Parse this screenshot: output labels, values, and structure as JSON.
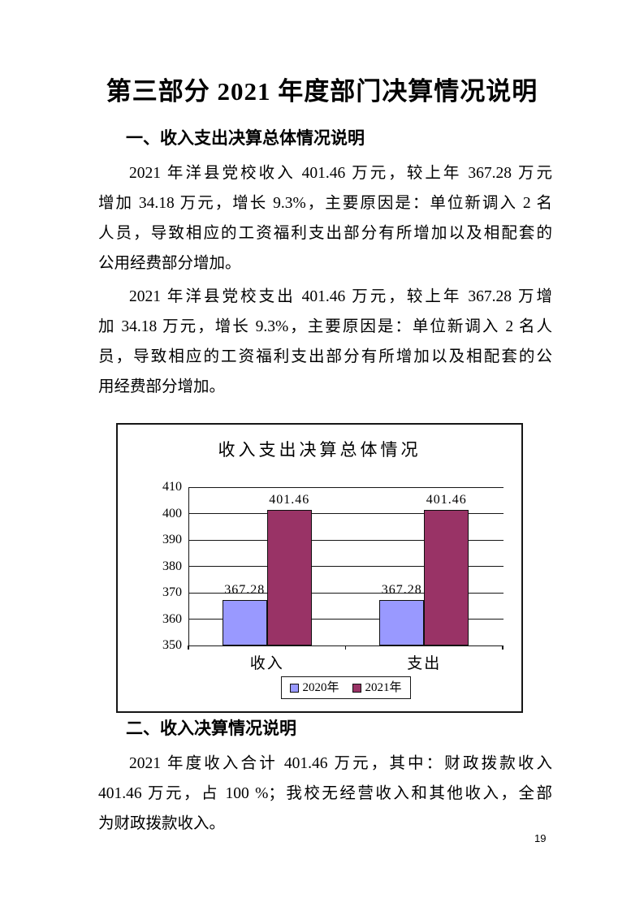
{
  "doc_title": "第三部分 2021 年度部门决算情况说明",
  "page_number": "19",
  "sections": [
    {
      "heading": "一、收入支出决算总体情况说明",
      "paragraphs": [
        {
          "lines": [
            "2021 年洋县党校收入 401.46 万元，较上年 367.28 万元",
            "增加 34.18 万元，增长 9.3%，主要原因是：单位新调入 2 名",
            "人员，导致相应的工资福利支出部分有所增加以及相配套的",
            "公用经费部分增加。"
          ]
        },
        {
          "lines": [
            "2021 年洋县党校支出 401.46 万元，较上年 367.28 万增",
            "加 34.18 万元，增长 9.3%，主要原因是：单位新调入 2 名人",
            "员，导致相应的工资福利支出部分有所增加以及相配套的公",
            "用经费部分增加。"
          ]
        }
      ]
    },
    {
      "heading": "二、收入决算情况说明",
      "paragraphs": [
        {
          "lines": [
            "2021 年度收入合计 401.46 万元，其中：财政拨款收入",
            "401.46 万元，占 100 %；我校无经营收入和其他收入，全部",
            "为财政拨款收入。"
          ]
        }
      ]
    }
  ],
  "chart_data": {
    "type": "bar",
    "title": "收入支出决算总体情况",
    "categories": [
      "收入",
      "支出"
    ],
    "series": [
      {
        "name": "2020年",
        "values": [
          367.28,
          367.28
        ],
        "color": "#9999FF"
      },
      {
        "name": "2021年",
        "values": [
          401.46,
          401.46
        ],
        "color": "#993366"
      }
    ],
    "ylim": [
      350,
      410
    ],
    "ytick_step": 10,
    "grid": true,
    "legend_position": "bottom",
    "value_labels": true,
    "value_label_texts": [
      [
        "367.28",
        "367.28"
      ],
      [
        "401.46",
        "401.46"
      ]
    ]
  }
}
